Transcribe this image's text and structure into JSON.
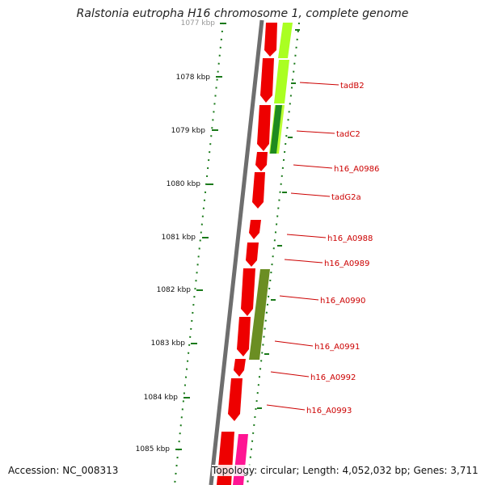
{
  "title": "Ralstonia eutropha H16 chromosome 1, complete genome",
  "accession": "Accession: NC_008313",
  "summary": "Topology: circular; Length: 4,052,032 bp; Genes: 3,711",
  "scale_labels": [
    "1077 kbp",
    "1078 kbp",
    "1079 kbp",
    "1080 kbp",
    "1081 kbp",
    "1082 kbp",
    "1083 kbp",
    "1084 kbp",
    "1085 kbp"
  ],
  "gene_labels": [
    "tadB2",
    "tadC2",
    "h16_A0986",
    "tadG2a",
    "h16_A0988",
    "h16_A0989",
    "h16_A0990",
    "h16_A0991",
    "h16_A0992",
    "h16_A0993"
  ],
  "colors": {
    "gene": "#ee0000",
    "label": "#cc0000",
    "tick": "#1a7a1a",
    "backbone": "#707070",
    "feature_light_green": "#aaff22",
    "feature_dark_green": "#228822",
    "feature_olive": "#6b8e23",
    "feature_pink": "#ff1493"
  }
}
